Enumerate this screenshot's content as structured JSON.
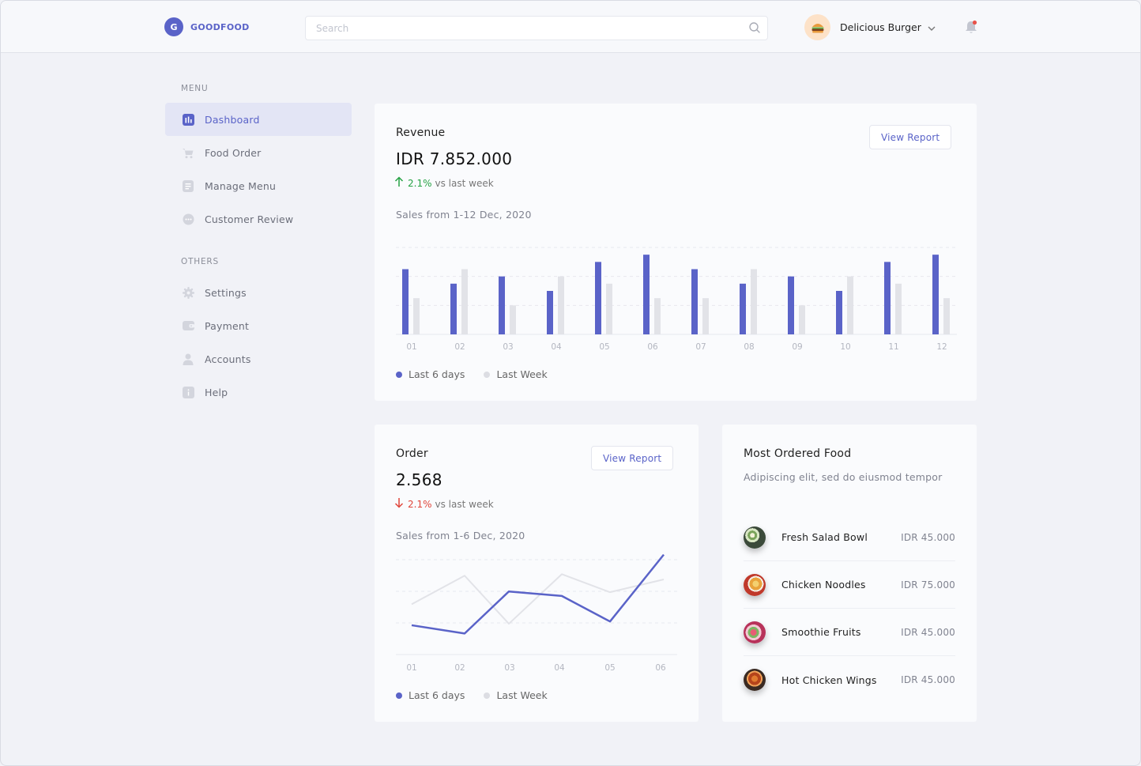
{
  "brand": {
    "initial": "G",
    "name": "GOODFOOD",
    "accent": "#5a63c8"
  },
  "search": {
    "placeholder": "Search",
    "value": ""
  },
  "profile": {
    "name": "Delicious Burger",
    "avatar_icon": "burger-icon",
    "notification_badge_color": "#e8524a"
  },
  "sidebar": {
    "menu_title": "MENU",
    "menu_items": [
      {
        "label": "Dashboard",
        "icon": "chart-icon",
        "active": true
      },
      {
        "label": "Food Order",
        "icon": "cart-icon",
        "active": false
      },
      {
        "label": "Manage Menu",
        "icon": "document-icon",
        "active": false
      },
      {
        "label": "Customer Review",
        "icon": "chat-icon",
        "active": false
      }
    ],
    "others_title": "OTHERS",
    "other_items": [
      {
        "label": "Settings",
        "icon": "gear-icon"
      },
      {
        "label": "Payment",
        "icon": "wallet-icon"
      },
      {
        "label": "Accounts",
        "icon": "user-icon"
      },
      {
        "label": "Help",
        "icon": "info-icon"
      }
    ]
  },
  "revenue": {
    "title": "Revenue",
    "value": "IDR 7.852.000",
    "delta_pct": "2.1%",
    "delta_text": "vs last week",
    "delta_direction": "up",
    "subtitle": "Sales from 1-12 Dec, 2020",
    "button": "View Report",
    "legend": [
      "Last 6 days",
      "Last Week"
    ]
  },
  "order": {
    "title": "Order",
    "value": "2.568",
    "delta_pct": "2.1%",
    "delta_text": "vs last week",
    "delta_direction": "down",
    "subtitle": "Sales from 1-6 Dec, 2020",
    "button": "View Report",
    "legend": [
      "Last 6 days",
      "Last Week"
    ]
  },
  "most_ordered": {
    "title": "Most Ordered Food",
    "subtitle": "Adipiscing elit, sed do eiusmod tempor",
    "items": [
      {
        "name": "Fresh Salad Bowl",
        "price": "IDR 45.000",
        "icon": "salad-bowl-icon"
      },
      {
        "name": "Chicken Noodles",
        "price": "IDR 75.000",
        "icon": "noodles-icon"
      },
      {
        "name": "Smoothie Fruits",
        "price": "IDR 45.000",
        "icon": "fruits-icon"
      },
      {
        "name": "Hot Chicken Wings",
        "price": "IDR 45.000",
        "icon": "chicken-wings-icon"
      }
    ]
  },
  "chart_data": [
    {
      "type": "bar",
      "categories": [
        "01",
        "02",
        "03",
        "04",
        "05",
        "06",
        "07",
        "08",
        "09",
        "10",
        "11",
        "12"
      ],
      "series": [
        {
          "name": "Last 6 days",
          "color": "#5a63c8",
          "values": [
            90,
            70,
            80,
            60,
            100,
            110,
            90,
            70,
            80,
            60,
            100,
            110
          ]
        },
        {
          "name": "Last Week",
          "color": "#e2e3e8",
          "values": [
            50,
            90,
            40,
            80,
            70,
            50,
            50,
            90,
            40,
            80,
            70,
            50
          ]
        }
      ],
      "ylim": [
        0,
        120
      ],
      "grid": true,
      "legend": "bottom-left"
    },
    {
      "type": "line",
      "categories": [
        "01",
        "02",
        "03",
        "04",
        "05",
        "06"
      ],
      "series": [
        {
          "name": "Last 6 days",
          "color": "#5a63c8",
          "values": [
            39,
            28,
            84,
            78,
            44,
            133
          ]
        },
        {
          "name": "Last Week",
          "color": "#e2e3e8",
          "values": [
            67,
            105,
            41,
            107,
            83,
            100
          ]
        }
      ],
      "ylim": [
        0,
        140
      ],
      "grid": true,
      "legend": "bottom-left"
    }
  ]
}
